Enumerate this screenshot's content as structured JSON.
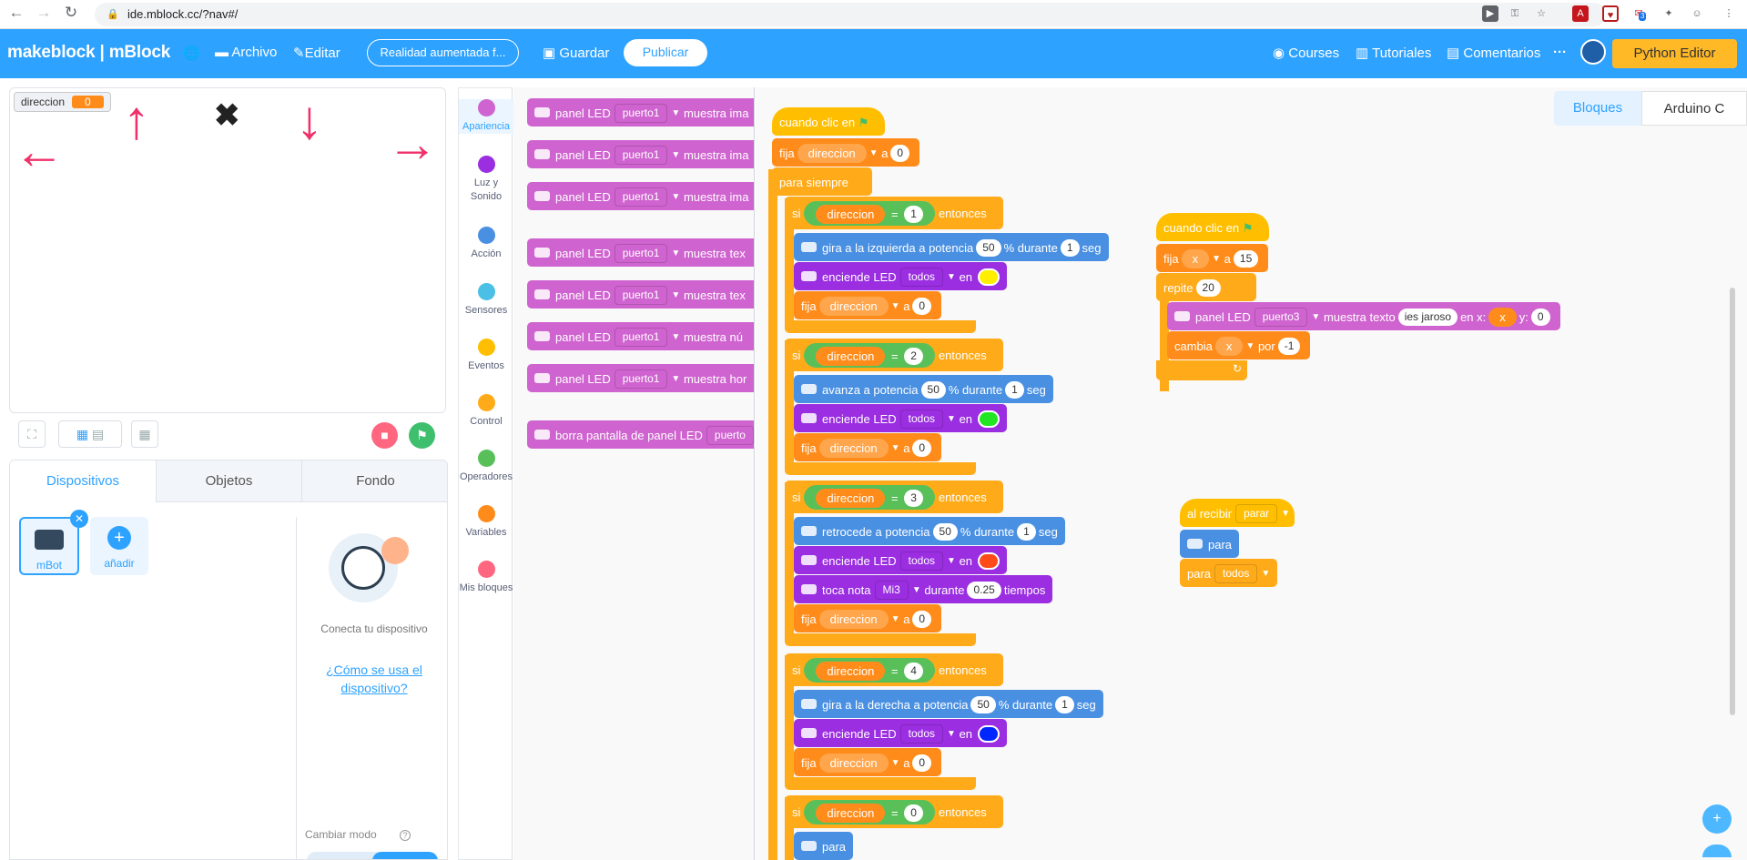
{
  "browser": {
    "url": "ide.mblock.cc/?nav#/",
    "ext_badge": "3"
  },
  "appbar": {
    "brand": "makeblock | mBlock",
    "menu_archivo": "Archivo",
    "menu_editar": "Editar",
    "project_name": "Realidad aumentada f...",
    "guardar": "Guardar",
    "publicar": "Publicar",
    "courses": "Courses",
    "tutoriales": "Tutoriales",
    "comentarios": "Comentarios",
    "more": "···",
    "python_editor": "Python Editor"
  },
  "stage": {
    "var_name": "direccion",
    "var_value": "0",
    "arrows": {
      "left": "←",
      "up": "↑",
      "x": "✖",
      "down": "↓",
      "right": "→"
    }
  },
  "device_panel": {
    "tabs": [
      "Dispositivos",
      "Objetos",
      "Fondo"
    ],
    "device_name": "mBot",
    "add_label": "añadir",
    "connect_text": "Conecta tu dispositivo",
    "how_link": "¿Cómo se usa el dispositivo?",
    "change_mode": "Cambiar modo"
  },
  "categories": [
    {
      "label": "Apariencia",
      "color": "#cf63cf"
    },
    {
      "label": "Luz y Sonido",
      "color": "#9a2ee0"
    },
    {
      "label": "Acción",
      "color": "#4a90e2"
    },
    {
      "label": "Sensores",
      "color": "#4cbfe6"
    },
    {
      "label": "Eventos",
      "color": "#ffbf00"
    },
    {
      "label": "Control",
      "color": "#ffab19"
    },
    {
      "label": "Operadores",
      "color": "#59c059"
    },
    {
      "label": "Variables",
      "color": "#ff8c1a"
    },
    {
      "label": "Mis bloques",
      "color": "#ff6680"
    }
  ],
  "palette": {
    "panel_led": "panel LED",
    "port": "puerto1",
    "muestra_ima": "muestra ima",
    "muestra_tex": "muestra tex",
    "muestra_num": "muestra nú",
    "muestra_hor": "muestra hor",
    "borra": "borra pantalla de panel LED",
    "borra_port": "puerto"
  },
  "workspace": {
    "tab_bloques": "Bloques",
    "tab_arduino": "Arduino C",
    "cuando_clic": "cuando clic en",
    "fija": "fija",
    "a": "a",
    "direccion": "direccion",
    "para_siempre": "para siempre",
    "si": "si",
    "entonces": "entonces",
    "eq": "=",
    "v0": "0",
    "v1": "1",
    "v2": "2",
    "v3": "3",
    "v4": "4",
    "gira_izq": "gira a la izquierda a potencia",
    "avanza": "avanza a potencia",
    "retrocede": "retrocede a potencia",
    "gira_der": "gira a la derecha a potencia",
    "potencia": "50",
    "pct_durante": "% durante",
    "seg": "seg",
    "enciende": "enciende LED",
    "todos": "todos",
    "en": "en",
    "toca_nota": "toca nota",
    "nota": "Mi3",
    "durante": "durante",
    "tiempos_val": "0.25",
    "tiempos": "tiempos",
    "para": "para",
    "x": "x",
    "v15": "15",
    "repite": "repite",
    "v20": "20",
    "panel_led": "panel LED",
    "puerto3": "puerto3",
    "muestra_texto": "muestra texto",
    "ies_jaroso": "ies jaroso",
    "en_x": "en x:",
    "y": "y:",
    "cambia": "cambia",
    "por": "por",
    "m1": "-1",
    "al_recibir": "al recibir",
    "parar": "parar",
    "para_todos": "todos",
    "led_colors": [
      "#ffee00",
      "#22e622",
      "#ff4a1a",
      "#0026ff"
    ]
  }
}
